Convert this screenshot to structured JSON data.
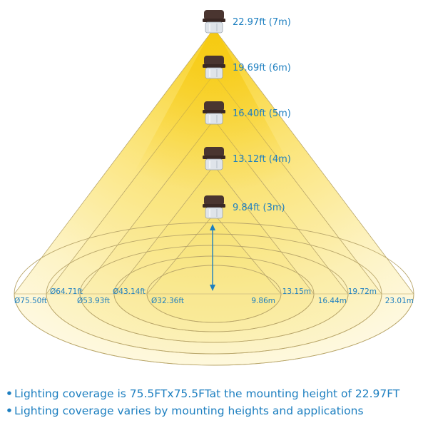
{
  "colors": {
    "accent": "#1d7fc0",
    "beam_light": "#fbe98a",
    "beam_dark": "#f7cf1e",
    "fixture": "#4a3530"
  },
  "fixtures": [
    {
      "icon": "canopy-light-icon",
      "height_label": "22.97ft (7m)"
    },
    {
      "icon": "canopy-light-icon",
      "height_label": "19.69ft (6m)"
    },
    {
      "icon": "canopy-light-icon",
      "height_label": "16.40ft (5m)"
    },
    {
      "icon": "canopy-light-icon",
      "height_label": "13.12ft (4m)"
    },
    {
      "icon": "canopy-light-icon",
      "height_label": "9.84ft (3m)"
    }
  ],
  "rings": [
    {
      "diameter_label": "Ø75.50ft",
      "radius_label": "23.01m"
    },
    {
      "diameter_label": "Ø64.71ft",
      "radius_label": "19.72m"
    },
    {
      "diameter_label": "Ø53.93ft",
      "radius_label": "16.44m"
    },
    {
      "diameter_label": "Ø43.14ft",
      "radius_label": "13.15m"
    },
    {
      "diameter_label": "Ø32.36ft",
      "radius_label": "9.86m"
    }
  ],
  "notes": [
    "Lighting coverage is 75.5FTx75.5FTat the mounting height of 22.97FT",
    "Lighting coverage varies by mounting heights and applications"
  ],
  "bullet_char": "•"
}
